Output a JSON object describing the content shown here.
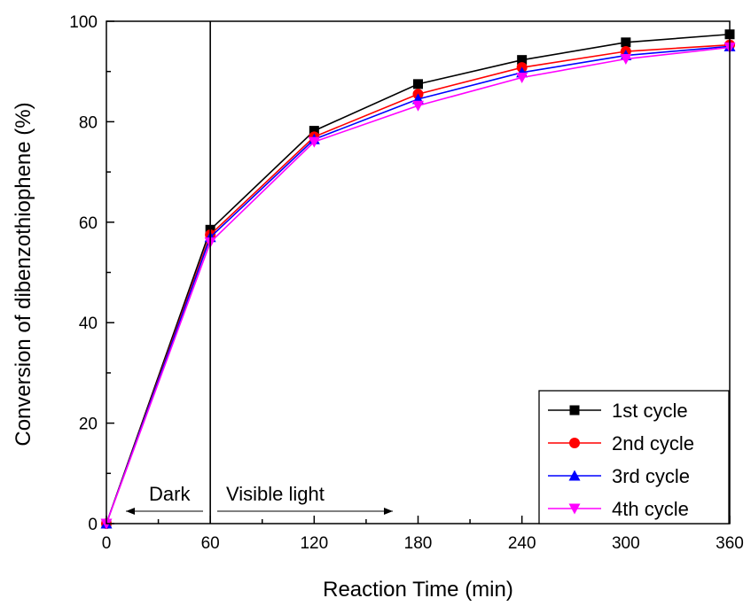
{
  "chart_data": {
    "type": "line",
    "xlabel": "Reaction Time (min)",
    "ylabel": "Conversion of dibenzothiophene (%)",
    "xlim": [
      0,
      360
    ],
    "ylim": [
      0,
      100
    ],
    "xticks": [
      0,
      60,
      120,
      180,
      240,
      300,
      360
    ],
    "yticks": [
      0,
      20,
      40,
      60,
      80,
      100
    ],
    "grid": false,
    "legend_position": "bottom-right",
    "x": [
      0,
      60,
      120,
      180,
      240,
      300,
      360
    ],
    "series": [
      {
        "name": "1st cycle",
        "color": "#000000",
        "marker": "square",
        "values": [
          0,
          58.5,
          78.2,
          87.5,
          92.3,
          95.8,
          97.4
        ]
      },
      {
        "name": "2nd cycle",
        "color": "#ff0000",
        "marker": "circle",
        "values": [
          0,
          57.5,
          77.0,
          85.5,
          90.8,
          94.0,
          95.3
        ]
      },
      {
        "name": "3rd cycle",
        "color": "#0000ff",
        "marker": "triangle-up",
        "values": [
          0,
          57.0,
          76.5,
          84.5,
          89.8,
          93.2,
          95.0
        ]
      },
      {
        "name": "4th cycle",
        "color": "#ff00ff",
        "marker": "triangle-down",
        "values": [
          0,
          56.0,
          76.0,
          83.2,
          88.8,
          92.5,
          94.8
        ]
      }
    ],
    "annotations": {
      "divider_x": 60,
      "dark_label": "Dark",
      "light_label": "Visible light"
    }
  }
}
